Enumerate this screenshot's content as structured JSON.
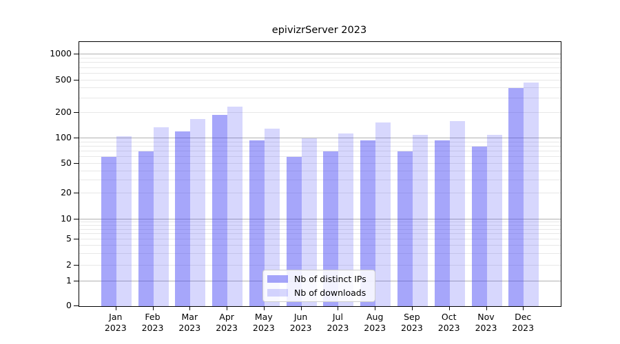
{
  "title": "epivizrServer 2023",
  "colors": {
    "ips_bar": "rgba(66,66,245,0.47)",
    "downloads_bar": "rgba(66,66,245,0.21)",
    "major_grid": "#b0b0b0",
    "minor_grid": "#e7e7e7",
    "spine": "#000000"
  },
  "legend": {
    "items": [
      {
        "label": "Nb of distinct IPs"
      },
      {
        "label": "Nb of downloads"
      }
    ]
  },
  "chart_data": {
    "type": "bar",
    "title": "epivizrServer 2023",
    "categories": [
      "Jan 2023",
      "Feb 2023",
      "Mar 2023",
      "Apr 2023",
      "May 2023",
      "Jun 2023",
      "Jul 2023",
      "Aug 2023",
      "Sep 2023",
      "Oct 2023",
      "Nov 2023",
      "Dec 2023"
    ],
    "months": [
      "Jan",
      "Feb",
      "Mar",
      "Apr",
      "May",
      "Jun",
      "Jul",
      "Aug",
      "Sep",
      "Oct",
      "Nov",
      "Dec"
    ],
    "year": "2023",
    "series": [
      {
        "name": "Nb of distinct IPs",
        "values": [
          60,
          70,
          120,
          190,
          95,
          60,
          70,
          95,
          70,
          95,
          80,
          400
        ]
      },
      {
        "name": "Nb of downloads",
        "values": [
          105,
          135,
          170,
          240,
          130,
          100,
          115,
          155,
          110,
          160,
          110,
          470
        ]
      }
    ],
    "xlabel": "",
    "ylabel": "",
    "yscale": "log-like (0,1,2,5,10,20,50,100,200,500,1000)",
    "y_ticks": [
      0,
      1,
      2,
      5,
      10,
      20,
      50,
      100,
      200,
      500,
      1000
    ],
    "y_tick_labels": [
      "0",
      "1",
      "2",
      "5",
      "10",
      "20",
      "50",
      "100",
      "200",
      "500",
      "1000"
    ],
    "ylim": [
      0,
      1400
    ],
    "grid": "on (horizontal major + minor)",
    "legend_position": "lower center"
  }
}
